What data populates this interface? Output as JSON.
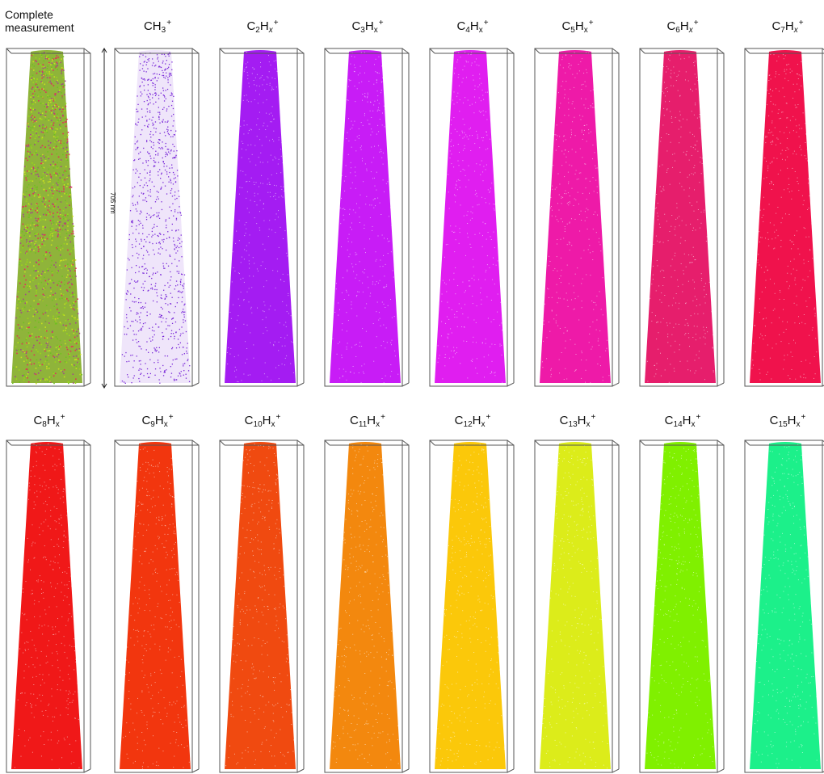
{
  "panels": [
    {
      "label": "Complete measurement",
      "sub": "",
      "h_sub": "",
      "italic": false,
      "color": "#8a9a3a",
      "mixed": true
    },
    {
      "label": "CH",
      "sub": "3",
      "h_sub": "",
      "italic": false,
      "color": "#7a2ad8",
      "sparse": true
    },
    {
      "label": "C",
      "sub": "2",
      "h_sub": "x",
      "italic": true,
      "color": "#a41cf2"
    },
    {
      "label": "C",
      "sub": "3",
      "h_sub": "x",
      "italic": false,
      "color": "#c81cf6"
    },
    {
      "label": "C",
      "sub": "4",
      "h_sub": "x",
      "italic": false,
      "color": "#e01ef0"
    },
    {
      "label": "C",
      "sub": "5",
      "h_sub": "x",
      "italic": false,
      "color": "#ee1aa8"
    },
    {
      "label": "C",
      "sub": "6",
      "h_sub": "x",
      "italic": true,
      "color": "#e61e6c"
    },
    {
      "label": "C",
      "sub": "7",
      "h_sub": "x",
      "italic": true,
      "color": "#f0124c"
    },
    {
      "label": "C",
      "sub": "8",
      "h_sub": "x",
      "italic": false,
      "color": "#f01818"
    },
    {
      "label": "C",
      "sub": "9",
      "h_sub": "x",
      "italic": false,
      "color": "#f2360e"
    },
    {
      "label": "C",
      "sub": "10",
      "h_sub": "x",
      "italic": false,
      "color": "#f04a10"
    },
    {
      "label": "C",
      "sub": "11",
      "h_sub": "x",
      "italic": false,
      "color": "#f3880e"
    },
    {
      "label": "C",
      "sub": "12",
      "h_sub": "x",
      "italic": false,
      "color": "#fbc80a"
    },
    {
      "label": "C",
      "sub": "13",
      "h_sub": "x",
      "italic": false,
      "color": "#dcec1a"
    },
    {
      "label": "C",
      "sub": "14",
      "h_sub": "x",
      "italic": false,
      "color": "#80f000"
    },
    {
      "label": "C",
      "sub": "15",
      "h_sub": "x",
      "italic": false,
      "color": "#1cf08a"
    }
  ],
  "scale_label": "705 nm"
}
